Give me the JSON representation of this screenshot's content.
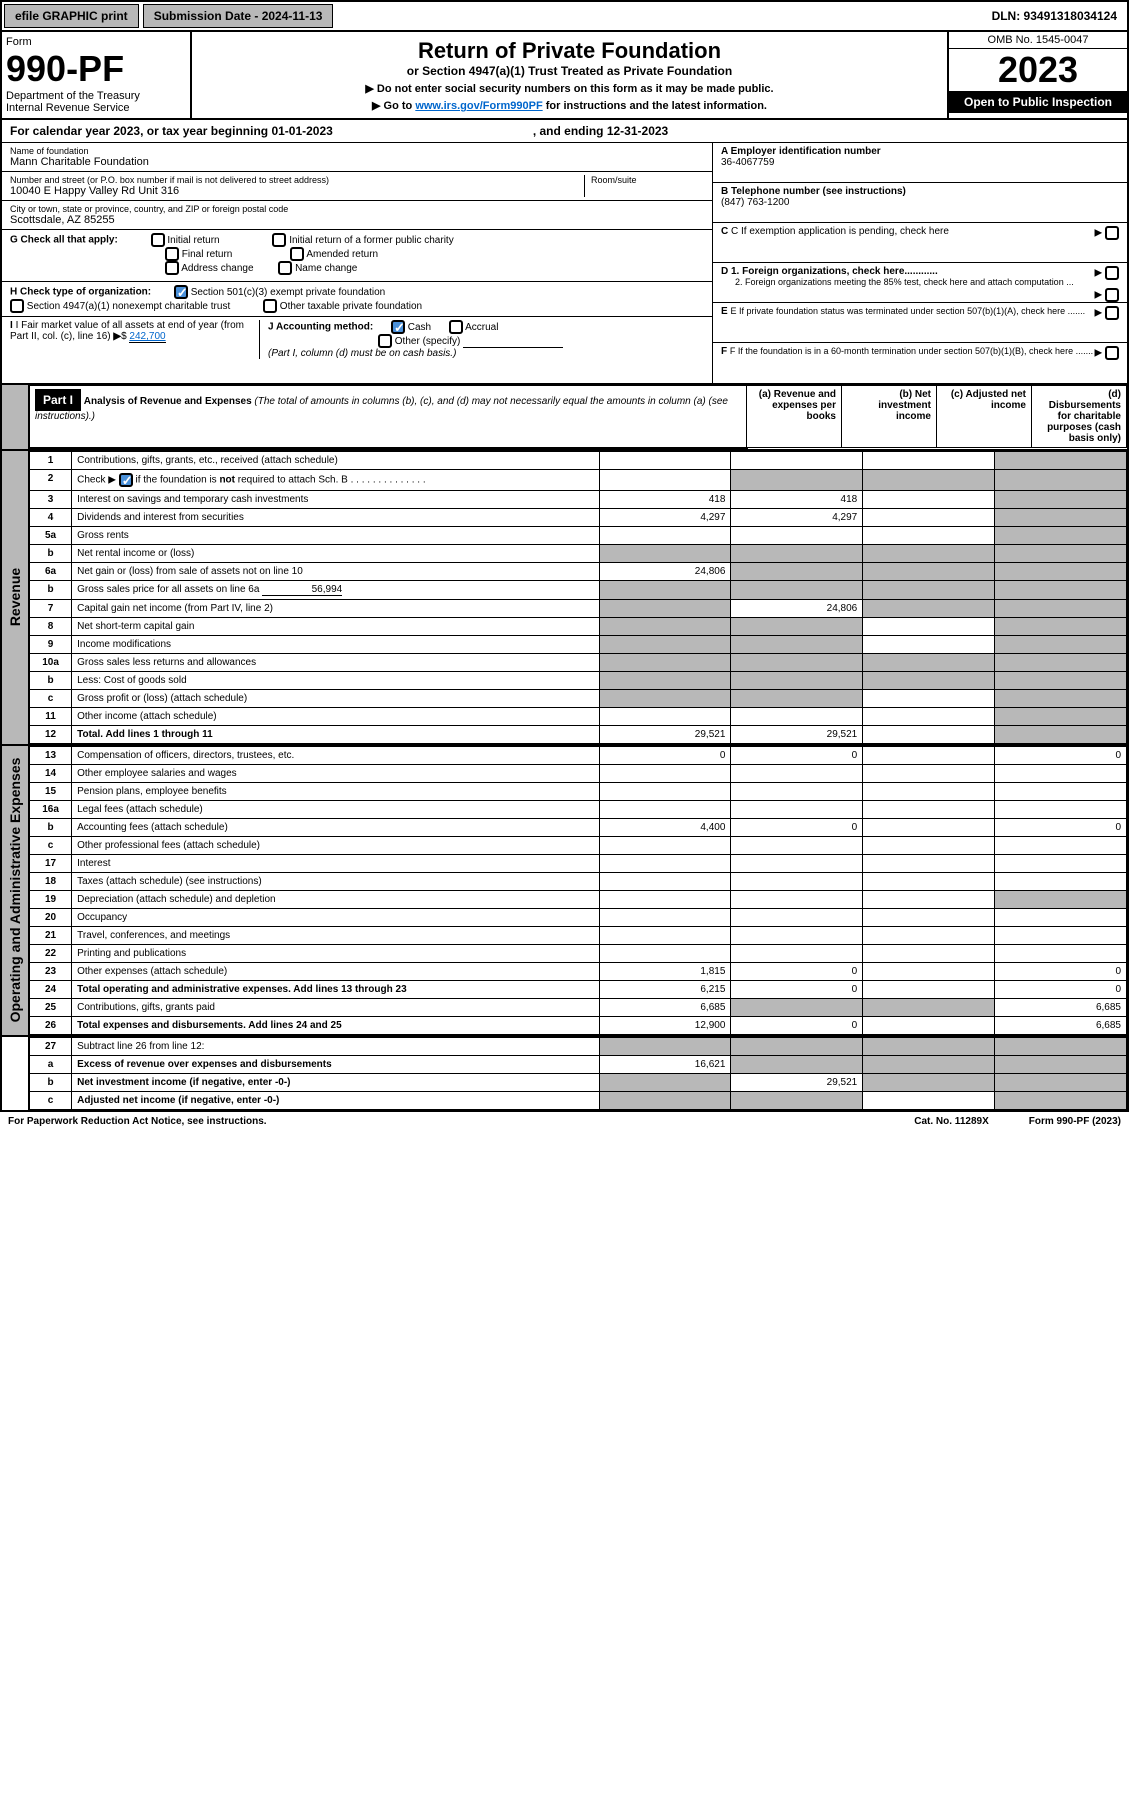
{
  "topbar": {
    "efile": "efile GRAPHIC print",
    "submission": "Submission Date - 2024-11-13",
    "dln": "DLN: 93491318034124"
  },
  "header": {
    "form_label": "Form",
    "form_number": "990-PF",
    "dept1": "Department of the Treasury",
    "dept2": "Internal Revenue Service",
    "title": "Return of Private Foundation",
    "subtitle": "or Section 4947(a)(1) Trust Treated as Private Foundation",
    "note1": "▶ Do not enter social security numbers on this form as it may be made public.",
    "note2_pre": "▶ Go to ",
    "note2_link": "www.irs.gov/Form990PF",
    "note2_post": " for instructions and the latest information.",
    "omb": "OMB No. 1545-0047",
    "year": "2023",
    "inspect": "Open to Public Inspection"
  },
  "calendar": {
    "text": "For calendar year 2023, or tax year beginning 01-01-2023",
    "ending": ", and ending 12-31-2023"
  },
  "org": {
    "name_label": "Name of foundation",
    "name": "Mann Charitable Foundation",
    "addr_label": "Number and street (or P.O. box number if mail is not delivered to street address)",
    "room_label": "Room/suite",
    "addr": "10040 E Happy Valley Rd Unit 316",
    "city_label": "City or town, state or province, country, and ZIP or foreign postal code",
    "city": "Scottsdale, AZ  85255",
    "ein_label": "A Employer identification number",
    "ein": "36-4067759",
    "phone_label": "B Telephone number (see instructions)",
    "phone": "(847) 763-1200",
    "c_label": "C If exemption application is pending, check here",
    "d1": "D 1. Foreign organizations, check here............",
    "d2": "2. Foreign organizations meeting the 85% test, check here and attach computation ...",
    "e_label": "E  If private foundation status was terminated under section 507(b)(1)(A), check here .......",
    "f_label": "F  If the foundation is in a 60-month termination under section 507(b)(1)(B), check here ......."
  },
  "g": {
    "label": "G Check all that apply:",
    "opts": [
      "Initial return",
      "Final return",
      "Address change",
      "Initial return of a former public charity",
      "Amended return",
      "Name change"
    ]
  },
  "h": {
    "label": "H Check type of organization:",
    "opt1": "Section 501(c)(3) exempt private foundation",
    "opt2": "Section 4947(a)(1) nonexempt charitable trust",
    "opt3": "Other taxable private foundation"
  },
  "i": {
    "label": "I Fair market value of all assets at end of year (from Part II, col. (c), line 16)",
    "val": "242,700"
  },
  "j": {
    "label": "J Accounting method:",
    "cash": "Cash",
    "accrual": "Accrual",
    "other": "Other (specify)",
    "note": "(Part I, column (d) must be on cash basis.)"
  },
  "part1": {
    "label": "Part I",
    "title": "Analysis of Revenue and Expenses",
    "title_note": " (The total of amounts in columns (b), (c), and (d) may not necessarily equal the amounts in column (a) (see instructions).)",
    "col_a": "(a)  Revenue and expenses per books",
    "col_b": "(b)  Net investment income",
    "col_c": "(c)  Adjusted net income",
    "col_d": "(d)  Disbursements for charitable purposes (cash basis only)"
  },
  "side_labels": {
    "revenue": "Revenue",
    "expenses": "Operating and Administrative Expenses"
  },
  "rows": [
    {
      "n": "1",
      "d": "Contributions, gifts, grants, etc., received (attach schedule)",
      "a": "",
      "b": "",
      "c": "",
      "dd": "",
      "c_grey": false,
      "d_grey": true
    },
    {
      "n": "2",
      "d": "Check ▶ ☑ if the foundation is not required to attach Sch. B",
      "a": "",
      "b": "",
      "c": "",
      "dd": "",
      "b_grey": true,
      "c_grey": true,
      "d_grey": true,
      "bold_check": true
    },
    {
      "n": "3",
      "d": "Interest on savings and temporary cash investments",
      "a": "418",
      "b": "418",
      "c": "",
      "dd": "",
      "d_grey": true
    },
    {
      "n": "4",
      "d": "Dividends and interest from securities",
      "a": "4,297",
      "b": "4,297",
      "c": "",
      "dd": "",
      "d_grey": true
    },
    {
      "n": "5a",
      "d": "Gross rents",
      "a": "",
      "b": "",
      "c": "",
      "dd": "",
      "d_grey": true
    },
    {
      "n": "b",
      "d": "Net rental income or (loss)",
      "a": "",
      "b": "",
      "c": "",
      "dd": "",
      "a_grey": true,
      "b_grey": true,
      "c_grey": true,
      "d_grey": true,
      "inset": true
    },
    {
      "n": "6a",
      "d": "Net gain or (loss) from sale of assets not on line 10",
      "a": "24,806",
      "b": "",
      "c": "",
      "dd": "",
      "b_grey": true,
      "c_grey": true,
      "d_grey": true
    },
    {
      "n": "b",
      "d": "Gross sales price for all assets on line 6a",
      "inset_val": "56,994",
      "a": "",
      "b": "",
      "c": "",
      "dd": "",
      "a_grey": true,
      "b_grey": true,
      "c_grey": true,
      "d_grey": true,
      "inset": true
    },
    {
      "n": "7",
      "d": "Capital gain net income (from Part IV, line 2)",
      "a": "",
      "b": "24,806",
      "c": "",
      "dd": "",
      "a_grey": true,
      "c_grey": true,
      "d_grey": true
    },
    {
      "n": "8",
      "d": "Net short-term capital gain",
      "a": "",
      "b": "",
      "c": "",
      "dd": "",
      "a_grey": true,
      "b_grey": true,
      "d_grey": true
    },
    {
      "n": "9",
      "d": "Income modifications",
      "a": "",
      "b": "",
      "c": "",
      "dd": "",
      "a_grey": true,
      "b_grey": true,
      "d_grey": true
    },
    {
      "n": "10a",
      "d": "Gross sales less returns and allowances",
      "a": "",
      "b": "",
      "c": "",
      "dd": "",
      "a_grey": true,
      "b_grey": true,
      "c_grey": true,
      "d_grey": true,
      "inset": true
    },
    {
      "n": "b",
      "d": "Less: Cost of goods sold",
      "a": "",
      "b": "",
      "c": "",
      "dd": "",
      "a_grey": true,
      "b_grey": true,
      "c_grey": true,
      "d_grey": true,
      "inset": true
    },
    {
      "n": "c",
      "d": "Gross profit or (loss) (attach schedule)",
      "a": "",
      "b": "",
      "c": "",
      "dd": "",
      "a_grey": true,
      "b_grey": true,
      "d_grey": true
    },
    {
      "n": "11",
      "d": "Other income (attach schedule)",
      "a": "",
      "b": "",
      "c": "",
      "dd": "",
      "d_grey": true
    },
    {
      "n": "12",
      "d": "Total. Add lines 1 through 11",
      "a": "29,521",
      "b": "29,521",
      "c": "",
      "dd": "",
      "d_grey": true,
      "bold": true
    }
  ],
  "exp_rows": [
    {
      "n": "13",
      "d": "Compensation of officers, directors, trustees, etc.",
      "a": "0",
      "b": "0",
      "c": "",
      "dd": "0"
    },
    {
      "n": "14",
      "d": "Other employee salaries and wages",
      "a": "",
      "b": "",
      "c": "",
      "dd": ""
    },
    {
      "n": "15",
      "d": "Pension plans, employee benefits",
      "a": "",
      "b": "",
      "c": "",
      "dd": ""
    },
    {
      "n": "16a",
      "d": "Legal fees (attach schedule)",
      "a": "",
      "b": "",
      "c": "",
      "dd": ""
    },
    {
      "n": "b",
      "d": "Accounting fees (attach schedule)",
      "a": "4,400",
      "b": "0",
      "c": "",
      "dd": "0"
    },
    {
      "n": "c",
      "d": "Other professional fees (attach schedule)",
      "a": "",
      "b": "",
      "c": "",
      "dd": ""
    },
    {
      "n": "17",
      "d": "Interest",
      "a": "",
      "b": "",
      "c": "",
      "dd": ""
    },
    {
      "n": "18",
      "d": "Taxes (attach schedule) (see instructions)",
      "a": "",
      "b": "",
      "c": "",
      "dd": ""
    },
    {
      "n": "19",
      "d": "Depreciation (attach schedule) and depletion",
      "a": "",
      "b": "",
      "c": "",
      "dd": "",
      "d_grey": true
    },
    {
      "n": "20",
      "d": "Occupancy",
      "a": "",
      "b": "",
      "c": "",
      "dd": ""
    },
    {
      "n": "21",
      "d": "Travel, conferences, and meetings",
      "a": "",
      "b": "",
      "c": "",
      "dd": ""
    },
    {
      "n": "22",
      "d": "Printing and publications",
      "a": "",
      "b": "",
      "c": "",
      "dd": ""
    },
    {
      "n": "23",
      "d": "Other expenses (attach schedule)",
      "a": "1,815",
      "b": "0",
      "c": "",
      "dd": "0"
    },
    {
      "n": "24",
      "d": "Total operating and administrative expenses. Add lines 13 through 23",
      "a": "6,215",
      "b": "0",
      "c": "",
      "dd": "0",
      "bold": true
    },
    {
      "n": "25",
      "d": "Contributions, gifts, grants paid",
      "a": "6,685",
      "b": "",
      "c": "",
      "dd": "6,685",
      "b_grey": true,
      "c_grey": true
    },
    {
      "n": "26",
      "d": "Total expenses and disbursements. Add lines 24 and 25",
      "a": "12,900",
      "b": "0",
      "c": "",
      "dd": "6,685",
      "bold": true
    }
  ],
  "final_rows": [
    {
      "n": "27",
      "d": "Subtract line 26 from line 12:",
      "a": "",
      "b": "",
      "c": "",
      "dd": "",
      "a_grey": true,
      "b_grey": true,
      "c_grey": true,
      "d_grey": true
    },
    {
      "n": "a",
      "d": "Excess of revenue over expenses and disbursements",
      "a": "16,621",
      "b": "",
      "c": "",
      "dd": "",
      "b_grey": true,
      "c_grey": true,
      "d_grey": true,
      "bold": true
    },
    {
      "n": "b",
      "d": "Net investment income (if negative, enter -0-)",
      "a": "",
      "b": "29,521",
      "c": "",
      "dd": "",
      "a_grey": true,
      "c_grey": true,
      "d_grey": true,
      "bold": true
    },
    {
      "n": "c",
      "d": "Adjusted net income (if negative, enter -0-)",
      "a": "",
      "b": "",
      "c": "",
      "dd": "",
      "a_grey": true,
      "b_grey": true,
      "d_grey": true,
      "bold": true
    }
  ],
  "footer": {
    "left": "For Paperwork Reduction Act Notice, see instructions.",
    "mid": "Cat. No. 11289X",
    "right": "Form 990-PF (2023)"
  },
  "colors": {
    "grey": "#b8b8b8",
    "link": "#0066cc",
    "check_blue": "#4a90d9"
  }
}
